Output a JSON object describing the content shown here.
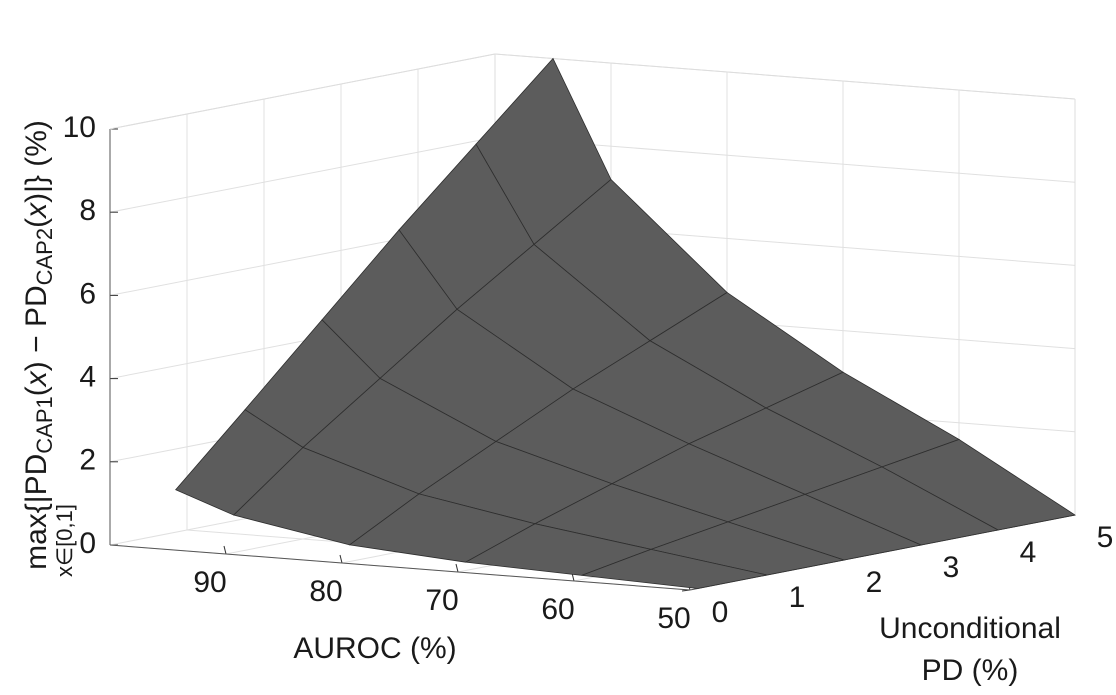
{
  "chart_data": {
    "type": "surface",
    "x_label": "AUROC (%)",
    "y_label": [
      "Unconditional",
      "PD (%)"
    ],
    "z_label": {
      "parts": [
        "max{|PD",
        "CAP1",
        "(",
        "x",
        ") − PD",
        "CAP2",
        "(",
        "x",
        ")|} (%)"
      ],
      "sub": "x∈[0,1]"
    },
    "xlim": [
      50,
      100
    ],
    "xticks": [
      50,
      60,
      70,
      80,
      90
    ],
    "ylim": [
      0,
      5
    ],
    "yticks": [
      0,
      1,
      2,
      3,
      4,
      5
    ],
    "zlim": [
      0,
      10
    ],
    "zticks": [
      0,
      2,
      4,
      6,
      8,
      10
    ],
    "grid": true,
    "color": "#5c5c5c",
    "x": [
      50,
      60,
      70,
      80,
      90,
      95
    ],
    "y": [
      0.1,
      1,
      2,
      3,
      4,
      5
    ],
    "z": [
      [
        0,
        0,
        0,
        0,
        0,
        0
      ],
      [
        0.1,
        0.4,
        0.7,
        1.0,
        1.3,
        1.6
      ],
      [
        0.2,
        0.8,
        1.4,
        2.0,
        2.5,
        3.0
      ],
      [
        0.4,
        1.3,
        2.2,
        3.1,
        3.9,
        4.7
      ],
      [
        0.9,
        2.2,
        3.5,
        4.8,
        6.0,
        7.2
      ],
      [
        1.4,
        3.0,
        4.8,
        6.6,
        8.3,
        10.0
      ]
    ]
  }
}
